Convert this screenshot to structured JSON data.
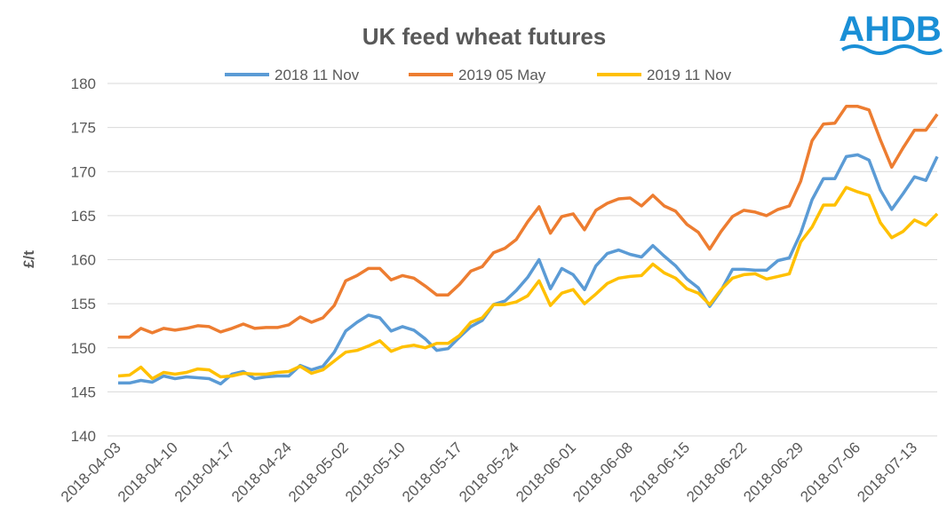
{
  "logo": "AHDB",
  "chart_data": {
    "type": "line",
    "title": "UK feed wheat futures",
    "y_label": "£/t",
    "categories": [
      "2018-04-03",
      null,
      null,
      null,
      null,
      "2018-04-10",
      null,
      null,
      null,
      null,
      "2018-04-17",
      null,
      null,
      null,
      null,
      "2018-04-24",
      null,
      null,
      null,
      null,
      "2018-05-02",
      null,
      null,
      null,
      null,
      "2018-05-10",
      null,
      null,
      null,
      null,
      "2018-05-17",
      null,
      null,
      null,
      null,
      "2018-05-24",
      null,
      null,
      null,
      null,
      "2018-06-01",
      null,
      null,
      null,
      null,
      "2018-06-08",
      null,
      null,
      null,
      null,
      "2018-06-15",
      null,
      null,
      null,
      null,
      "2018-06-22",
      null,
      null,
      null,
      null,
      "2018-06-29",
      null,
      null,
      null,
      null,
      "2018-07-06",
      null,
      null,
      null,
      null,
      "2018-07-13",
      null,
      null
    ],
    "series": [
      {
        "name": "2018 11 Nov",
        "color": "#5b9bd5",
        "values": [
          146,
          146,
          146.3,
          146.1,
          146.8,
          146.5,
          146.7,
          146.6,
          146.5,
          145.9,
          147,
          147.3,
          146.5,
          146.7,
          146.8,
          146.8,
          148,
          147.5,
          147.9,
          149.5,
          151.9,
          152.9,
          153.7,
          153.4,
          151.9,
          152.4,
          152,
          151,
          149.7,
          149.9,
          151.2,
          152.4,
          153.1,
          154.9,
          155.3,
          156.5,
          158,
          160,
          156.7,
          159,
          158.3,
          156.6,
          159.3,
          160.7,
          161.1,
          160.6,
          160.3,
          161.6,
          160.4,
          159.3,
          157.8,
          156.8,
          154.7,
          156.5,
          158.9,
          158.9,
          158.8,
          158.8,
          159.9,
          160.2,
          163,
          166.8,
          169.2,
          169.2,
          171.7,
          171.9,
          171.3,
          167.9,
          165.7,
          167.5,
          169.4,
          169,
          171.7
        ]
      },
      {
        "name": "2019 05 May",
        "color": "#ed7d31",
        "values": [
          151.2,
          151.2,
          152.2,
          151.7,
          152.2,
          152,
          152.2,
          152.5,
          152.4,
          151.8,
          152.2,
          152.7,
          152.2,
          152.3,
          152.3,
          152.6,
          153.5,
          152.9,
          153.4,
          154.8,
          157.6,
          158.2,
          159,
          159,
          157.7,
          158.2,
          157.9,
          157,
          156,
          156,
          157.2,
          158.7,
          159.2,
          160.8,
          161.3,
          162.3,
          164.3,
          166,
          163,
          164.9,
          165.2,
          163.4,
          165.6,
          166.4,
          166.9,
          167,
          166.1,
          167.3,
          166.1,
          165.5,
          164,
          163.1,
          161.2,
          163.2,
          164.9,
          165.6,
          165.4,
          165,
          165.7,
          166.1,
          168.9,
          173.5,
          175.4,
          175.5,
          177.4,
          177.4,
          177,
          173.6,
          170.5,
          172.7,
          174.7,
          174.7,
          176.5
        ]
      },
      {
        "name": "2019 11 Nov",
        "color": "#ffc000",
        "values": [
          146.8,
          146.9,
          147.8,
          146.5,
          147.2,
          147,
          147.2,
          147.6,
          147.5,
          146.7,
          146.8,
          147.1,
          147,
          147,
          147.2,
          147.3,
          147.9,
          147.1,
          147.5,
          148.5,
          149.5,
          149.7,
          150.2,
          150.8,
          149.6,
          150.1,
          150.3,
          150,
          150.5,
          150.5,
          151.4,
          152.9,
          153.4,
          154.9,
          154.9,
          155.2,
          155.9,
          157.6,
          154.8,
          156.2,
          156.6,
          155,
          156.1,
          157.3,
          157.9,
          158.1,
          158.2,
          159.5,
          158.5,
          157.9,
          156.7,
          156.2,
          154.9,
          156.6,
          157.9,
          158.3,
          158.4,
          157.8,
          158.1,
          158.4,
          162,
          163.7,
          166.2,
          166.2,
          168.2,
          167.7,
          167.3,
          164.2,
          162.5,
          163.2,
          164.5,
          163.9,
          165.2
        ]
      }
    ],
    "ylim": [
      140,
      180
    ],
    "yticks": [
      140,
      145,
      150,
      155,
      160,
      165,
      170,
      175,
      180
    ],
    "grid": true,
    "legend": "top"
  }
}
